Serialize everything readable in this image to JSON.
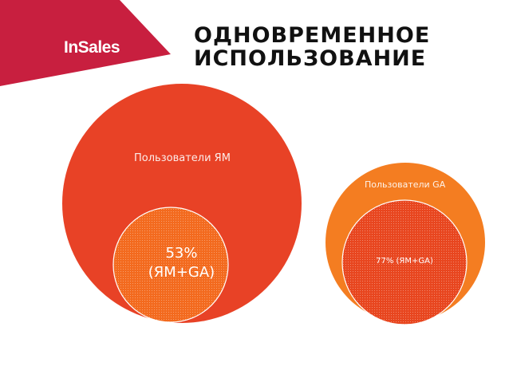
{
  "brand": {
    "logo_text": "InSales",
    "color": "#c81f3f"
  },
  "title": {
    "line1": "ОДНОВРЕМЕННОЕ",
    "line2": "ИСПОЛЬЗОВАНИЕ"
  },
  "venn_left": {
    "set_label": "Пользователи ЯМ",
    "overlap_value": "53%",
    "overlap_label": "(ЯМ+GA)",
    "set_color": "#e84226",
    "overlap_color": "#f36a1e"
  },
  "venn_right": {
    "set_label": "Пользователи GA",
    "overlap_label": "77% (ЯМ+GA)",
    "set_color": "#f47d21",
    "overlap_color": "#e8461f"
  }
}
